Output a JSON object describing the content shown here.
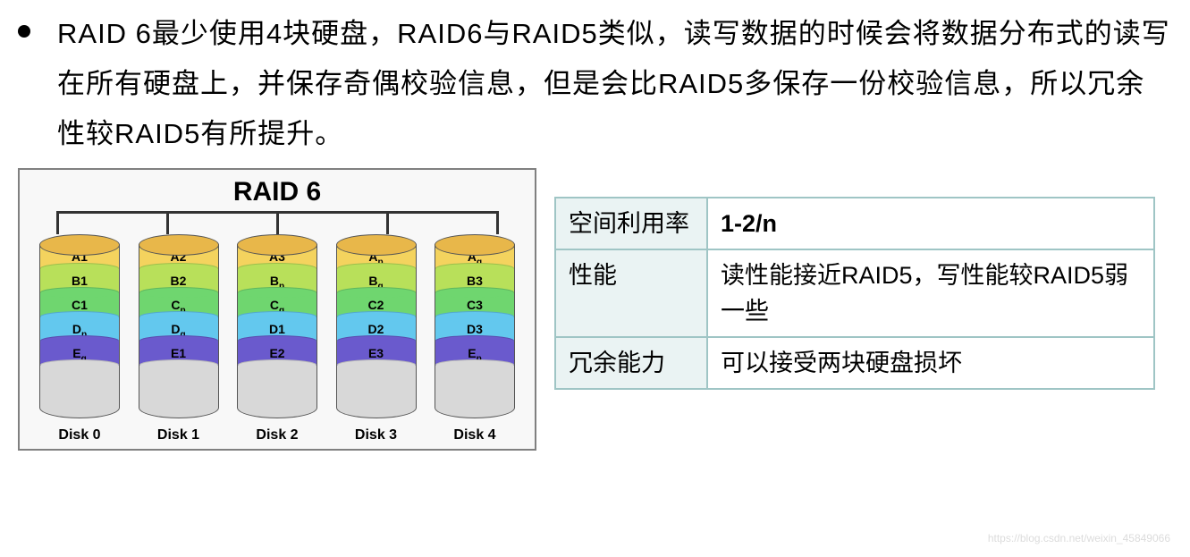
{
  "description": "RAID 6最少使用4块硬盘，RAID6与RAID5类似，读写数据的时候会将数据分布式的读写在所有硬盘上，并保存奇偶校验信息，但是会比RAID5多保存一份校验信息，所以冗余性较RAID5有所提升。",
  "diagram": {
    "title": "RAID 6",
    "border_color": "#808080",
    "background": "#f8f8f8",
    "top_fill": "#e8b74a",
    "bottom_fill": "#d8d8d8",
    "stripe_colors": [
      "#f4d35e",
      "#b8e05a",
      "#6fd66f",
      "#63c8ee",
      "#6a5acd"
    ],
    "disks": [
      {
        "label": "Disk 0",
        "stripes": [
          "A1",
          "B1",
          "C1",
          "D<sub>p</sub>",
          "E<sub>q</sub>"
        ]
      },
      {
        "label": "Disk 1",
        "stripes": [
          "A2",
          "B2",
          "C<sub>p</sub>",
          "D<sub>q</sub>",
          "E1"
        ]
      },
      {
        "label": "Disk 2",
        "stripes": [
          "A3",
          "B<sub>p</sub>",
          "C<sub>q</sub>",
          "D1",
          "E2"
        ]
      },
      {
        "label": "Disk 3",
        "stripes": [
          "A<sub>p</sub>",
          "B<sub>q</sub>",
          "C2",
          "D2",
          "E3"
        ]
      },
      {
        "label": "Disk 4",
        "stripes": [
          "A<sub>q</sub>",
          "B3",
          "C3",
          "D3",
          "E<sub>p</sub>"
        ]
      }
    ]
  },
  "table": {
    "header_bg": "#eaf3f3",
    "border_color": "#9fc5c5",
    "rows": [
      {
        "k": "空间利用率",
        "v": "1-2/n",
        "v_bold": true
      },
      {
        "k": "性能",
        "v": "读性能接近RAID5，写性能较RAID5弱一些",
        "v_bold": false
      },
      {
        "k": "冗余能力",
        "v": "可以接受两块硬盘损坏",
        "v_bold": false
      }
    ]
  },
  "watermark": "https://blog.csdn.net/weixin_45849066"
}
